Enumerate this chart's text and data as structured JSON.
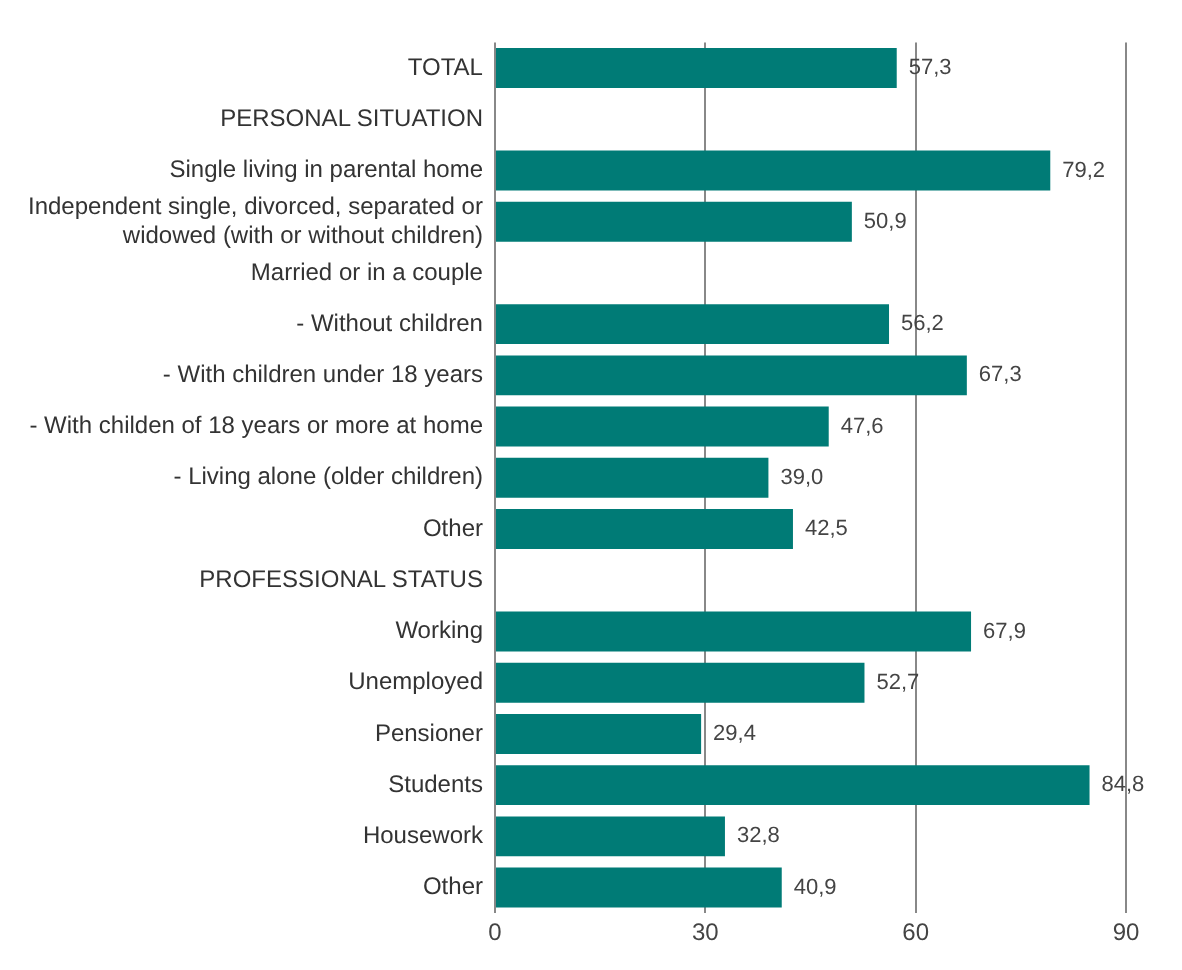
{
  "chart_data": {
    "type": "bar",
    "orientation": "horizontal",
    "categories": [
      "TOTAL",
      "PERSONAL SITUATION",
      "Single living in parental home",
      "Independent single, divorced, separated or widowed (with or without children)",
      "Married or in a couple",
      "- Without children",
      "- With children under 18 years",
      "- With childen of 18 years or more at home",
      "- Living alone (older children)",
      "Other",
      "PROFESSIONAL STATUS",
      "Working",
      "Unemployed",
      "Pensioner",
      "Students",
      "Housework",
      "Other"
    ],
    "values": [
      57.3,
      null,
      79.2,
      50.9,
      null,
      56.2,
      67.3,
      47.6,
      39.0,
      42.5,
      null,
      67.9,
      52.7,
      29.4,
      84.8,
      32.8,
      40.9
    ],
    "value_labels": [
      "57,3",
      null,
      "79,2",
      "50,9",
      null,
      "56,2",
      "67,3",
      "47,6",
      "39,0",
      "42,5",
      null,
      "67,9",
      "52,7",
      "29,4",
      "84,8",
      "32,8",
      "40,9"
    ],
    "color": "#007b76",
    "xlim": [
      0,
      90
    ],
    "xticks": [
      0,
      30,
      60,
      90
    ],
    "grid": "x",
    "legend": false
  }
}
